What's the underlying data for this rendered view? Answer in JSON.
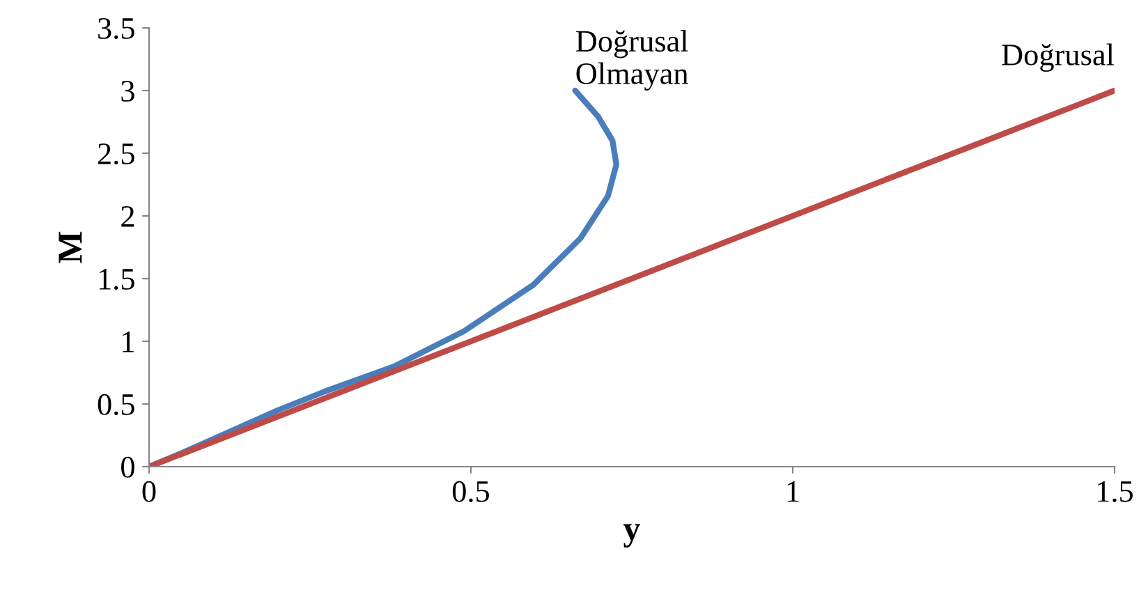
{
  "chart_data": {
    "type": "line",
    "xlabel": "y",
    "ylabel": "M",
    "xlim": [
      0,
      1.5
    ],
    "ylim": [
      0,
      3.5
    ],
    "xticks": [
      0,
      0.5,
      1,
      1.5
    ],
    "yticks": [
      0,
      0.5,
      1,
      1.5,
      2,
      2.5,
      3,
      3.5
    ],
    "grid": false,
    "legend": false,
    "marker": "none",
    "line_style": "solid",
    "series": [
      {
        "name": "Doğrusal Olmayan",
        "color": "#4a7ebb",
        "x": [
          0,
          0.056,
          0.2,
          0.273,
          0.381,
          0.489,
          0.597,
          0.67,
          0.713,
          0.726,
          0.72,
          0.698,
          0.662
        ],
        "values": [
          0,
          0.12,
          0.45,
          0.6,
          0.8,
          1.08,
          1.45,
          1.82,
          2.16,
          2.41,
          2.6,
          2.79,
          3.0
        ]
      },
      {
        "name": "Doğrusal",
        "color": "#be4b48",
        "x": [
          0,
          1.5
        ],
        "values": [
          0,
          3
        ]
      }
    ]
  }
}
